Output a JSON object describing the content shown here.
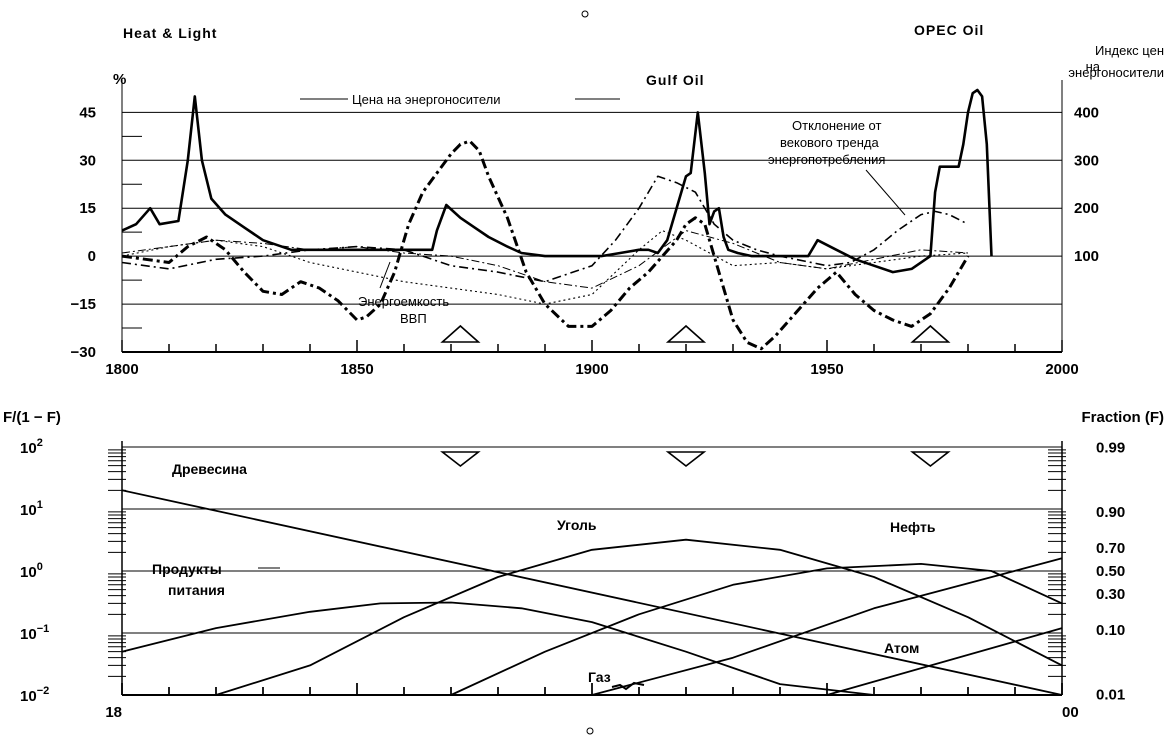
{
  "chart_data": [
    {
      "type": "line",
      "left_axis_label": "%",
      "right_axis_label": "Индекс цен на энергоносители",
      "right_axis_label_lines": [
        "Индекс цен",
        "на",
        "энергоносители"
      ],
      "x_ticks": [
        "1800",
        "1850",
        "1900",
        "1950",
        "2000"
      ],
      "xlim": [
        1800,
        2000
      ],
      "y_left_ticks": [
        "45",
        "30",
        "15",
        "0",
        "−15",
        "−30"
      ],
      "y_left_values": [
        45,
        30,
        15,
        0,
        -15,
        -30
      ],
      "ylim_left": [
        -30,
        52
      ],
      "y_right_ticks": [
        "400",
        "300",
        "200",
        "100"
      ],
      "y_right_values": [
        400,
        300,
        200,
        100
      ],
      "peak_labels": [
        {
          "text": "Heat & Light",
          "x": 1815
        },
        {
          "text": "Gulf Oil",
          "x": 1923
        },
        {
          "text": "OPEC Oil",
          "x": 1978
        }
      ],
      "annotations": [
        {
          "text": "Цена на энергоносители"
        },
        {
          "text": "Отклонение от векового тренда энергопотребления",
          "lines": [
            "Отклонение от",
            "векового тренда",
            "энергопотребления"
          ]
        },
        {
          "text": "Энергоемкость ВВП",
          "lines": [
            "Энергоемкость",
            "ВВП"
          ]
        }
      ],
      "markers_up_years": [
        1872,
        1920,
        1972
      ],
      "series": [
        {
          "style": "solid-bold",
          "x": [
            1800,
            1803,
            1806,
            1808,
            1812,
            1814,
            1815.5,
            1817,
            1819,
            1822,
            1826,
            1830,
            1836,
            1845,
            1852,
            1858,
            1864,
            1866,
            1867,
            1869,
            1872,
            1875,
            1878,
            1882,
            1885,
            1890,
            1896,
            1902,
            1906,
            1910,
            1912,
            1914,
            1916,
            1918,
            1920,
            1921,
            1922.5,
            1924,
            1925,
            1926,
            1927,
            1928,
            1929,
            1931,
            1934,
            1938,
            1942,
            1946,
            1948,
            1952,
            1956,
            1960,
            1964,
            1968,
            1972,
            1973,
            1974,
            1976,
            1978,
            1979,
            1980,
            1981,
            1982,
            1983,
            1984,
            1985
          ],
          "y": [
            8,
            10,
            15,
            10,
            11,
            30,
            50,
            30,
            18,
            13,
            9,
            5,
            2,
            2,
            2,
            2,
            2,
            2,
            8,
            16,
            12,
            9,
            6,
            3,
            1,
            0,
            0,
            0,
            1,
            2,
            2,
            1,
            5,
            15,
            25,
            26,
            45,
            26,
            10,
            14,
            15,
            6,
            2,
            1,
            0,
            0,
            0,
            0,
            5,
            2,
            -1,
            -3,
            -5,
            -4,
            0,
            20,
            28,
            28,
            28,
            35,
            45,
            51,
            52,
            50,
            35,
            0
          ]
        },
        {
          "style": "dash-dot-bold",
          "x": [
            1800,
            1805,
            1810,
            1814,
            1818,
            1822,
            1826,
            1830,
            1834,
            1838,
            1842,
            1846,
            1850,
            1852,
            1855,
            1858,
            1861,
            1864,
            1867,
            1870,
            1872,
            1874,
            1876,
            1878,
            1882,
            1886,
            1890,
            1895,
            1900,
            1904,
            1908,
            1912,
            1915,
            1918,
            1920,
            1922,
            1924,
            1926,
            1928,
            1930,
            1933,
            1936,
            1939,
            1942,
            1945,
            1948,
            1952,
            1956,
            1960,
            1964,
            1968,
            1972,
            1976,
            1980
          ],
          "y": [
            0,
            -1,
            -2,
            3,
            6,
            2,
            -5,
            -11,
            -12,
            -8,
            -10,
            -14,
            -20,
            -19,
            -15,
            -5,
            10,
            20,
            26,
            32,
            35,
            36,
            33,
            25,
            12,
            -5,
            -15,
            -22,
            -22,
            -17,
            -10,
            -5,
            0,
            5,
            10,
            12,
            10,
            0,
            -10,
            -20,
            -27,
            -29,
            -25,
            -20,
            -15,
            -10,
            -5,
            -12,
            -17,
            -20,
            -22,
            -18,
            -10,
            0
          ]
        },
        {
          "style": "dash-dot",
          "x": [
            1800,
            1810,
            1820,
            1830,
            1840,
            1850,
            1860,
            1870,
            1880,
            1890,
            1900,
            1905,
            1910,
            1914,
            1918,
            1922,
            1926,
            1930,
            1935,
            1940,
            1950,
            1955,
            1960,
            1965,
            1970,
            1973,
            1976,
            1980
          ],
          "y": [
            -2,
            -4,
            -1,
            0,
            2,
            3,
            2,
            -3,
            -5,
            -8,
            -3,
            5,
            15,
            25,
            23,
            20,
            10,
            5,
            2,
            0,
            -3,
            -2,
            2,
            8,
            13,
            14,
            13,
            10
          ]
        },
        {
          "style": "dash-dot-thin",
          "x": [
            1800,
            1810,
            1820,
            1830,
            1840,
            1850,
            1860,
            1870,
            1880,
            1890,
            1900,
            1910,
            1920,
            1930,
            1940,
            1950,
            1960,
            1970,
            1980
          ],
          "y": [
            1,
            3,
            5,
            4,
            2,
            3,
            1,
            0,
            -3,
            -8,
            -10,
            -3,
            8,
            4,
            -2,
            -4,
            -1,
            2,
            1
          ]
        },
        {
          "style": "dotted",
          "x": [
            1800,
            1810,
            1820,
            1830,
            1840,
            1850,
            1860,
            1870,
            1880,
            1890,
            1900,
            1910,
            1915,
            1920,
            1930,
            1940,
            1950,
            1960,
            1970,
            1980
          ],
          "y": [
            0,
            3,
            5,
            3,
            -2,
            -5,
            -8,
            -10,
            -12,
            -15,
            -12,
            2,
            8,
            5,
            -3,
            -2,
            -4,
            -2,
            0,
            1
          ]
        }
      ]
    },
    {
      "type": "line",
      "scale": "logit",
      "left_axis_label": "F/(1 − F)",
      "right_axis_label": "Fraction (F)",
      "x_ticks": [
        "1800",
        "1850",
        "1900",
        "1950",
        "2000"
      ],
      "xlim": [
        1800,
        2000
      ],
      "y_left_ticks": [
        {
          "base": "10",
          "exp": "2",
          "value": 100
        },
        {
          "base": "10",
          "exp": "1",
          "value": 10
        },
        {
          "base": "10",
          "exp": "0",
          "value": 1
        },
        {
          "base": "10",
          "exp": "−1",
          "value": 0.1
        },
        {
          "base": "10",
          "exp": "−2",
          "value": 0.01
        }
      ],
      "y_right_ticks": [
        "0.99",
        "0.90",
        "0.70",
        "0.50",
        "0.30",
        "0.10",
        "0.01"
      ],
      "y_right_values": [
        0.99,
        0.9,
        0.7,
        0.5,
        0.3,
        0.1,
        0.01
      ],
      "markers_down_years": [
        1872,
        1920,
        1972
      ],
      "series": [
        {
          "name": "Древесина",
          "name_lines": [
            "Древесина"
          ],
          "x": [
            1800,
            2000
          ],
          "y_ratio": [
            20,
            0.0022
          ]
        },
        {
          "name": "Продукты питания",
          "name_lines": [
            "Продукты",
            "питания"
          ],
          "x": [
            1800,
            1820,
            1840,
            1855,
            1870,
            1885,
            1900,
            1920,
            1940,
            1960,
            1980
          ],
          "y_ratio": [
            0.05,
            0.12,
            0.22,
            0.3,
            0.31,
            0.25,
            0.15,
            0.05,
            0.015,
            0.004,
            0.001
          ]
        },
        {
          "name": "Уголь",
          "name_lines": [
            "Уголь"
          ],
          "x": [
            1800,
            1820,
            1840,
            1860,
            1880,
            1900,
            1920,
            1940,
            1960,
            1980,
            2000
          ],
          "y_ratio": [
            0.0015,
            0.006,
            0.03,
            0.18,
            0.8,
            2.2,
            3.2,
            2.2,
            0.8,
            0.18,
            0.03
          ]
        },
        {
          "name": "Нефть",
          "name_lines": [
            "Нефть"
          ],
          "x": [
            1870,
            1890,
            1910,
            1930,
            1950,
            1970,
            1985,
            2000
          ],
          "y_ratio": [
            0.01,
            0.05,
            0.2,
            0.6,
            1.1,
            1.3,
            1.0,
            0.3
          ]
        },
        {
          "name": "Газ",
          "name_lines": [
            "Газ"
          ],
          "x": [
            1900,
            1930,
            1960,
            2000
          ],
          "y_ratio": [
            0.008,
            0.04,
            0.25,
            1.6
          ]
        },
        {
          "name": "Атом",
          "name_lines": [
            "Атом"
          ],
          "x": [
            1950,
            2000
          ],
          "y_ratio": [
            0.007,
            0.12
          ]
        }
      ]
    }
  ]
}
